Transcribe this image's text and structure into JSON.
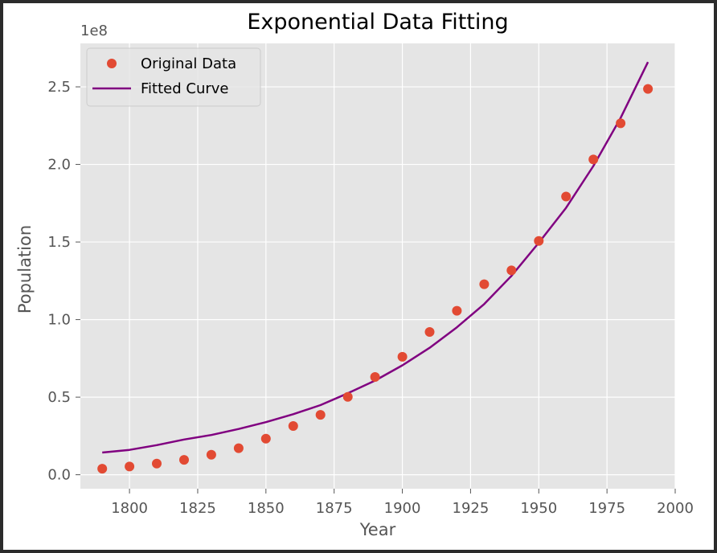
{
  "chart_data": {
    "type": "scatter",
    "title": "Exponential Data Fitting",
    "xlabel": "Year",
    "ylabel": "Population",
    "y_offset_label": "1e8",
    "y_scale": 100000000,
    "xlim": [
      1782,
      2000
    ],
    "ylim": [
      -0.09,
      2.78
    ],
    "xticks": [
      1800,
      1825,
      1850,
      1875,
      1900,
      1925,
      1950,
      1975,
      2000
    ],
    "yticks": [
      0.0,
      0.5,
      1.0,
      1.5,
      2.0,
      2.5
    ],
    "ytick_labels": [
      "0.0",
      "0.5",
      "1.0",
      "1.5",
      "2.0",
      "2.5"
    ],
    "grid": true,
    "legend_position": "upper-left",
    "series": [
      {
        "name": "Original Data",
        "kind": "scatter",
        "color": "#e24a33",
        "x": [
          1790,
          1800,
          1810,
          1820,
          1830,
          1840,
          1850,
          1860,
          1870,
          1880,
          1890,
          1900,
          1910,
          1920,
          1930,
          1940,
          1950,
          1960,
          1970,
          1980,
          1990
        ],
        "y": [
          0.039,
          0.053,
          0.072,
          0.096,
          0.129,
          0.171,
          0.232,
          0.314,
          0.386,
          0.502,
          0.63,
          0.76,
          0.92,
          1.057,
          1.228,
          1.317,
          1.507,
          1.793,
          2.032,
          2.265,
          2.487
        ]
      },
      {
        "name": "Fitted Curve",
        "kind": "line",
        "color": "#800080",
        "x": [
          1790,
          1800,
          1810,
          1820,
          1830,
          1840,
          1850,
          1860,
          1870,
          1880,
          1890,
          1900,
          1910,
          1920,
          1930,
          1940,
          1950,
          1960,
          1970,
          1980,
          1990
        ],
        "y": [
          0.143,
          0.16,
          0.191,
          0.227,
          0.256,
          0.295,
          0.339,
          0.39,
          0.449,
          0.525,
          0.607,
          0.705,
          0.818,
          0.95,
          1.1,
          1.282,
          1.495,
          1.72,
          1.99,
          2.3,
          2.66
        ]
      }
    ]
  }
}
